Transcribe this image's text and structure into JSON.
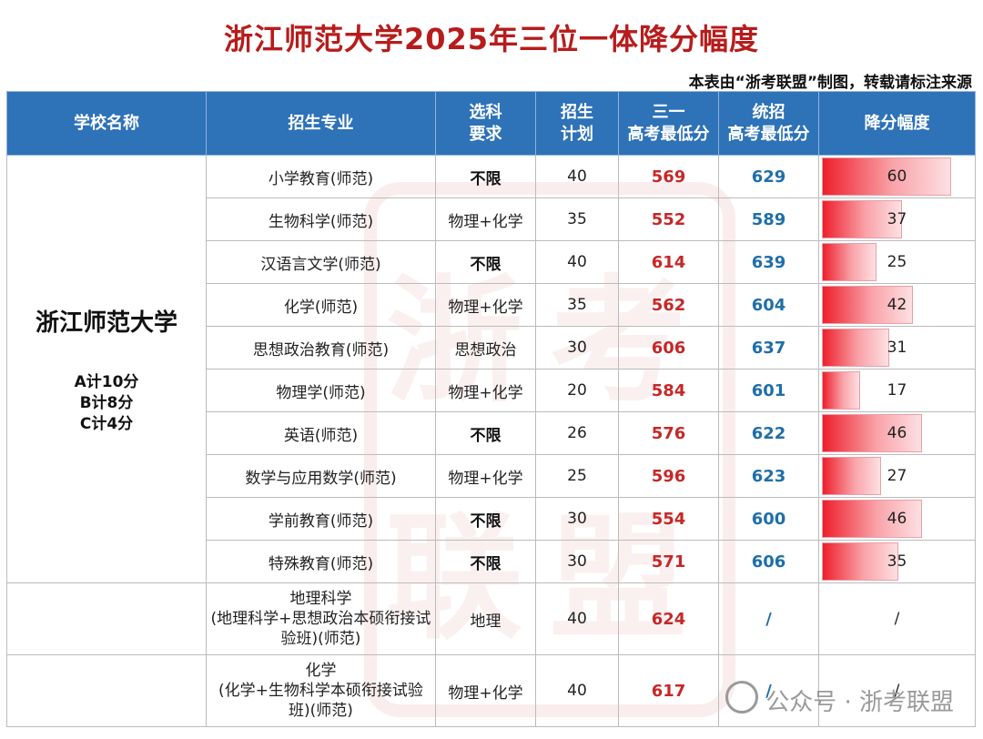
{
  "title": "浙江师范大学2025年三位一体降分幅度",
  "note": "本表由“浙考联盟”制图，转载请标注来源",
  "headers": {
    "school": "学校名称",
    "major": "招生专业",
    "subject_1": "选科",
    "subject_2": "要求",
    "plan_1": "招生",
    "plan_2": "计划",
    "sanyi_1": "三一",
    "sanyi_2": "高考最低分",
    "tongzhao_1": "统招",
    "tongzhao_2": "高考最低分",
    "drop": "降分幅度"
  },
  "school": {
    "name": "浙江师范大学",
    "bonus_a": "A计10分",
    "bonus_b": "B计8分",
    "bonus_c": "C计4分"
  },
  "rows": [
    {
      "major": "小学教育(师范)",
      "subject": "不限",
      "plan": "40",
      "sanyi": "569",
      "tongzhao": "629",
      "drop": "60",
      "drop_value": 60
    },
    {
      "major": "生物科学(师范)",
      "subject": "物理+化学",
      "plan": "35",
      "sanyi": "552",
      "tongzhao": "589",
      "drop": "37",
      "drop_value": 37
    },
    {
      "major": "汉语言文学(师范)",
      "subject": "不限",
      "plan": "40",
      "sanyi": "614",
      "tongzhao": "639",
      "drop": "25",
      "drop_value": 25
    },
    {
      "major": "化学(师范)",
      "subject": "物理+化学",
      "plan": "35",
      "sanyi": "562",
      "tongzhao": "604",
      "drop": "42",
      "drop_value": 42
    },
    {
      "major": "思想政治教育(师范)",
      "subject": "思想政治",
      "plan": "30",
      "sanyi": "606",
      "tongzhao": "637",
      "drop": "31",
      "drop_value": 31
    },
    {
      "major": "物理学(师范)",
      "subject": "物理+化学",
      "plan": "20",
      "sanyi": "584",
      "tongzhao": "601",
      "drop": "17",
      "drop_value": 17
    },
    {
      "major": "英语(师范)",
      "subject": "不限",
      "plan": "26",
      "sanyi": "576",
      "tongzhao": "622",
      "drop": "46",
      "drop_value": 46
    },
    {
      "major": "数学与应用数学(师范)",
      "subject": "物理+化学",
      "plan": "25",
      "sanyi": "596",
      "tongzhao": "623",
      "drop": "27",
      "drop_value": 27
    },
    {
      "major": "学前教育(师范)",
      "subject": "不限",
      "plan": "30",
      "sanyi": "554",
      "tongzhao": "600",
      "drop": "46",
      "drop_value": 46
    },
    {
      "major": "特殊教育(师范)",
      "subject": "不限",
      "plan": "30",
      "sanyi": "571",
      "tongzhao": "606",
      "drop": "35",
      "drop_value": 35
    }
  ],
  "extra_rows": [
    {
      "major_1": "地理科学",
      "major_2": "(地理科学+思想政治本硕衔接试",
      "major_3": "验班)(师范)",
      "subject": "地理",
      "plan": "40",
      "sanyi": "624",
      "tongzhao": "/",
      "drop": "/"
    },
    {
      "major_1": "化学",
      "major_2": "(化学+生物科学本硕衔接试验",
      "major_3": "班)(师范)",
      "subject": "物理+化学",
      "plan": "40",
      "sanyi": "617",
      "tongzhao": "/",
      "drop": "/"
    }
  ],
  "drop_max": 60,
  "watermark": {
    "chars": [
      "浙",
      "考",
      "联",
      "盟"
    ],
    "footer": "公众号 · 浙考联盟"
  },
  "colors": {
    "title": "#b71c1c",
    "header_bg": "#2e72b8",
    "sanyi": "#c62828",
    "tongzhao": "#1f6fa8",
    "bar": "#ee1f2c"
  }
}
